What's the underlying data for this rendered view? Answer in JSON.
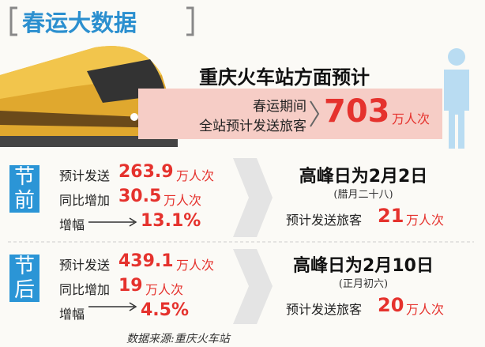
{
  "header": {
    "title": "春运大数据"
  },
  "summary": {
    "title": "重庆火车站方面预计",
    "line1": "春运期间",
    "line2": "全站预计发送旅客",
    "value": "703",
    "unit": "万人次"
  },
  "sections": [
    {
      "label": [
        "节",
        "前"
      ],
      "rows": [
        {
          "label": "预计发送",
          "value": "263.9",
          "unit": "万人次"
        },
        {
          "label": "同比增加",
          "value": "30.5",
          "unit": "万人次"
        },
        {
          "label": "增幅",
          "value": "13.1%"
        }
      ],
      "peak": {
        "title": "高峰日为2月2日",
        "note": "(腊月二十八)",
        "label": "预计发送旅客",
        "value": "21",
        "unit": "万人次"
      }
    },
    {
      "label": [
        "节",
        "后"
      ],
      "rows": [
        {
          "label": "预计发送",
          "value": "439.1",
          "unit": "万人次"
        },
        {
          "label": "同比增加",
          "value": "19",
          "unit": "万人次"
        },
        {
          "label": "增幅",
          "value": "4.5%"
        }
      ],
      "peak": {
        "title": "高峰日为2月10日",
        "note": "(正月初六)",
        "label": "预计发送旅客",
        "value": "20",
        "unit": "万人次"
      }
    }
  ],
  "source": "数据来源:重庆火车站"
}
